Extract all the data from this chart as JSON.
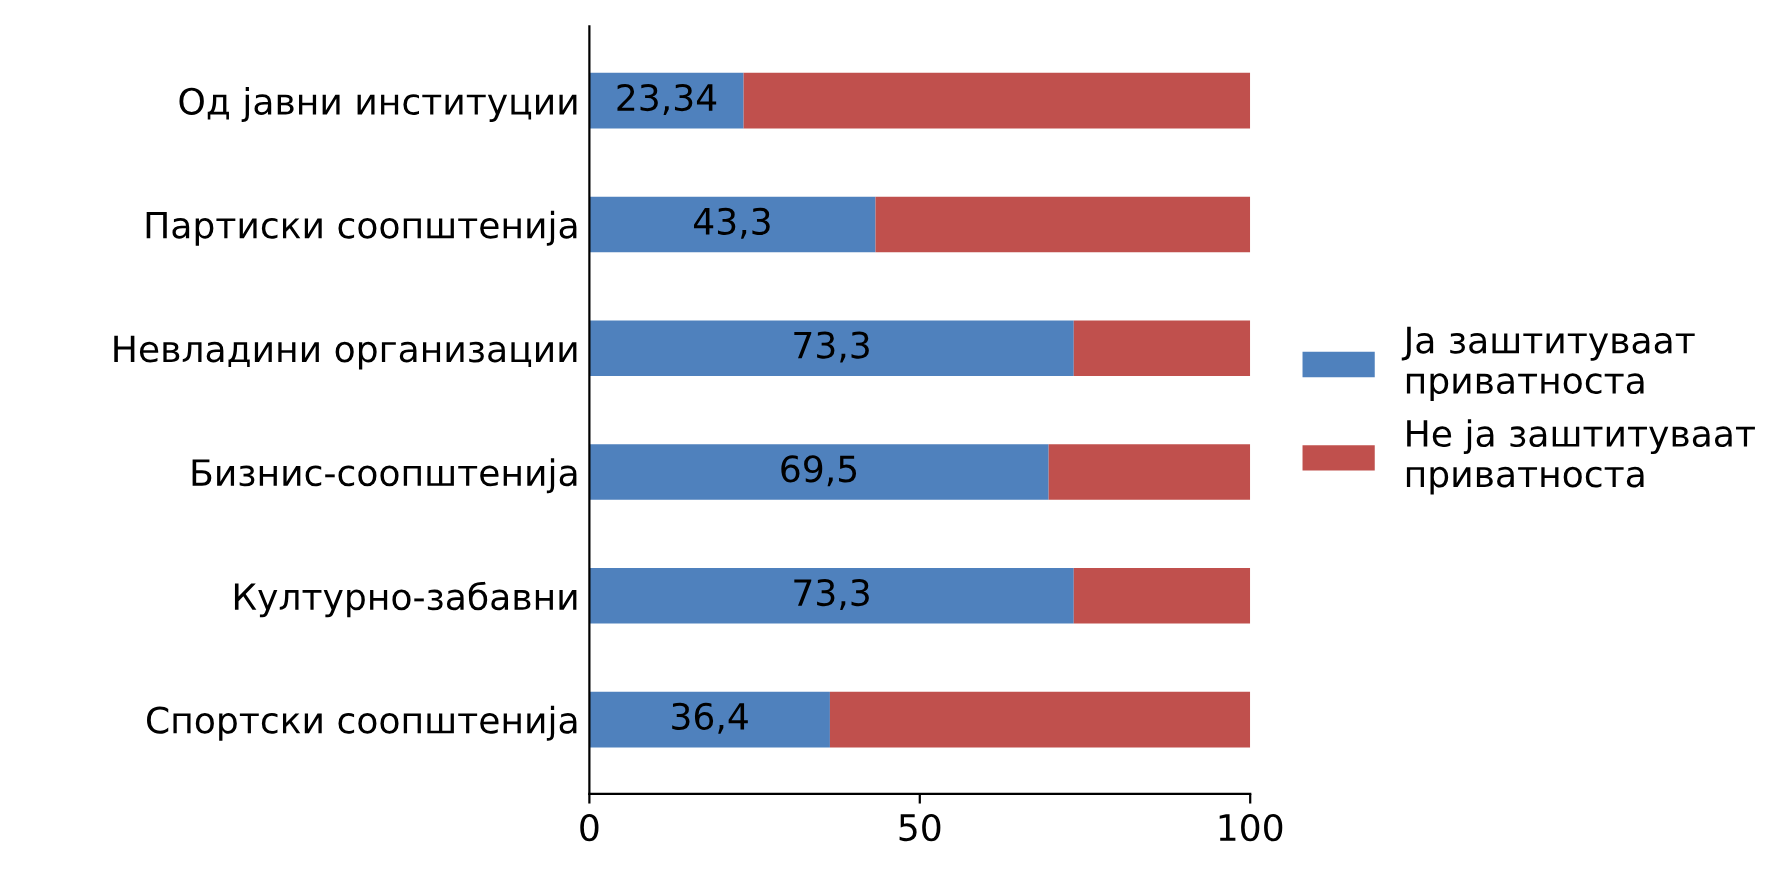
{
  "chart_data": {
    "type": "bar",
    "orientation": "horizontal",
    "stacked": true,
    "categories": [
      "Од јавни институции",
      "Партиски соопштенија",
      "Невладини организации",
      "Бизнис-соопштенија",
      "Културно-забавни",
      "Спортски соопштенија"
    ],
    "series": [
      {
        "name": "Ја заштитуваат\nприватноста",
        "color": "#4f81bd",
        "values": [
          23.34,
          43.3,
          73.3,
          69.5,
          73.3,
          36.4
        ],
        "value_labels": [
          "23,34",
          "43,3",
          "73,3",
          "69,5",
          "73,3",
          "36,4"
        ]
      },
      {
        "name": "Не ја заштитуваат\nприватноста",
        "color": "#c0504d",
        "values": [
          76.66,
          56.7,
          26.7,
          30.5,
          26.7,
          63.6
        ]
      }
    ],
    "xlim": [
      0,
      100
    ],
    "xticks": [
      0,
      50,
      100
    ],
    "grid": false,
    "legend": "right"
  }
}
